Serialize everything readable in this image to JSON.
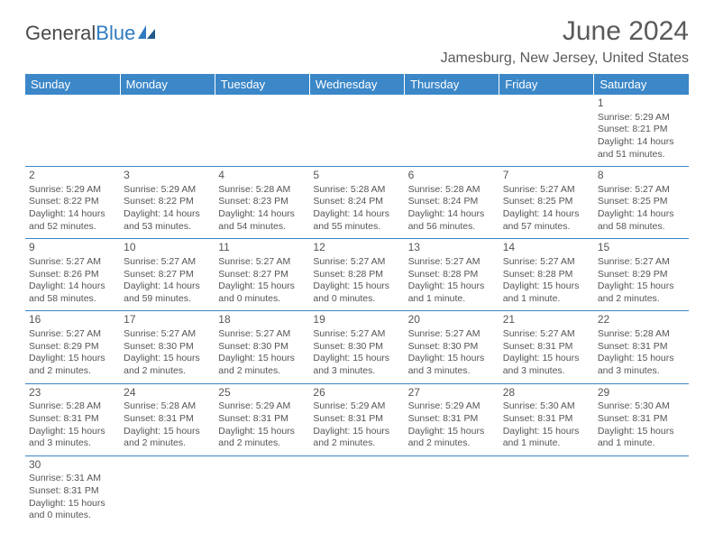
{
  "logo": {
    "text1": "General",
    "text2": "Blue"
  },
  "title": "June 2024",
  "location": "Jamesburg, New Jersey, United States",
  "colors": {
    "header_bg": "#3b87c8",
    "header_text": "#ffffff",
    "border": "#3b87c8",
    "text": "#555555",
    "logo_gray": "#4a4a4a",
    "logo_blue": "#2f7bbf"
  },
  "typography": {
    "title_fontsize": 30,
    "location_fontsize": 16,
    "weekday_fontsize": 13,
    "daynum_fontsize": 12,
    "cell_fontsize": 10.5
  },
  "weekdays": [
    "Sunday",
    "Monday",
    "Tuesday",
    "Wednesday",
    "Thursday",
    "Friday",
    "Saturday"
  ],
  "weeks": [
    [
      null,
      null,
      null,
      null,
      null,
      null,
      {
        "n": "1",
        "sr": "Sunrise: 5:29 AM",
        "ss": "Sunset: 8:21 PM",
        "dl": "Daylight: 14 hours and 51 minutes."
      }
    ],
    [
      {
        "n": "2",
        "sr": "Sunrise: 5:29 AM",
        "ss": "Sunset: 8:22 PM",
        "dl": "Daylight: 14 hours and 52 minutes."
      },
      {
        "n": "3",
        "sr": "Sunrise: 5:29 AM",
        "ss": "Sunset: 8:22 PM",
        "dl": "Daylight: 14 hours and 53 minutes."
      },
      {
        "n": "4",
        "sr": "Sunrise: 5:28 AM",
        "ss": "Sunset: 8:23 PM",
        "dl": "Daylight: 14 hours and 54 minutes."
      },
      {
        "n": "5",
        "sr": "Sunrise: 5:28 AM",
        "ss": "Sunset: 8:24 PM",
        "dl": "Daylight: 14 hours and 55 minutes."
      },
      {
        "n": "6",
        "sr": "Sunrise: 5:28 AM",
        "ss": "Sunset: 8:24 PM",
        "dl": "Daylight: 14 hours and 56 minutes."
      },
      {
        "n": "7",
        "sr": "Sunrise: 5:27 AM",
        "ss": "Sunset: 8:25 PM",
        "dl": "Daylight: 14 hours and 57 minutes."
      },
      {
        "n": "8",
        "sr": "Sunrise: 5:27 AM",
        "ss": "Sunset: 8:25 PM",
        "dl": "Daylight: 14 hours and 58 minutes."
      }
    ],
    [
      {
        "n": "9",
        "sr": "Sunrise: 5:27 AM",
        "ss": "Sunset: 8:26 PM",
        "dl": "Daylight: 14 hours and 58 minutes."
      },
      {
        "n": "10",
        "sr": "Sunrise: 5:27 AM",
        "ss": "Sunset: 8:27 PM",
        "dl": "Daylight: 14 hours and 59 minutes."
      },
      {
        "n": "11",
        "sr": "Sunrise: 5:27 AM",
        "ss": "Sunset: 8:27 PM",
        "dl": "Daylight: 15 hours and 0 minutes."
      },
      {
        "n": "12",
        "sr": "Sunrise: 5:27 AM",
        "ss": "Sunset: 8:28 PM",
        "dl": "Daylight: 15 hours and 0 minutes."
      },
      {
        "n": "13",
        "sr": "Sunrise: 5:27 AM",
        "ss": "Sunset: 8:28 PM",
        "dl": "Daylight: 15 hours and 1 minute."
      },
      {
        "n": "14",
        "sr": "Sunrise: 5:27 AM",
        "ss": "Sunset: 8:28 PM",
        "dl": "Daylight: 15 hours and 1 minute."
      },
      {
        "n": "15",
        "sr": "Sunrise: 5:27 AM",
        "ss": "Sunset: 8:29 PM",
        "dl": "Daylight: 15 hours and 2 minutes."
      }
    ],
    [
      {
        "n": "16",
        "sr": "Sunrise: 5:27 AM",
        "ss": "Sunset: 8:29 PM",
        "dl": "Daylight: 15 hours and 2 minutes."
      },
      {
        "n": "17",
        "sr": "Sunrise: 5:27 AM",
        "ss": "Sunset: 8:30 PM",
        "dl": "Daylight: 15 hours and 2 minutes."
      },
      {
        "n": "18",
        "sr": "Sunrise: 5:27 AM",
        "ss": "Sunset: 8:30 PM",
        "dl": "Daylight: 15 hours and 2 minutes."
      },
      {
        "n": "19",
        "sr": "Sunrise: 5:27 AM",
        "ss": "Sunset: 8:30 PM",
        "dl": "Daylight: 15 hours and 3 minutes."
      },
      {
        "n": "20",
        "sr": "Sunrise: 5:27 AM",
        "ss": "Sunset: 8:30 PM",
        "dl": "Daylight: 15 hours and 3 minutes."
      },
      {
        "n": "21",
        "sr": "Sunrise: 5:27 AM",
        "ss": "Sunset: 8:31 PM",
        "dl": "Daylight: 15 hours and 3 minutes."
      },
      {
        "n": "22",
        "sr": "Sunrise: 5:28 AM",
        "ss": "Sunset: 8:31 PM",
        "dl": "Daylight: 15 hours and 3 minutes."
      }
    ],
    [
      {
        "n": "23",
        "sr": "Sunrise: 5:28 AM",
        "ss": "Sunset: 8:31 PM",
        "dl": "Daylight: 15 hours and 3 minutes."
      },
      {
        "n": "24",
        "sr": "Sunrise: 5:28 AM",
        "ss": "Sunset: 8:31 PM",
        "dl": "Daylight: 15 hours and 2 minutes."
      },
      {
        "n": "25",
        "sr": "Sunrise: 5:29 AM",
        "ss": "Sunset: 8:31 PM",
        "dl": "Daylight: 15 hours and 2 minutes."
      },
      {
        "n": "26",
        "sr": "Sunrise: 5:29 AM",
        "ss": "Sunset: 8:31 PM",
        "dl": "Daylight: 15 hours and 2 minutes."
      },
      {
        "n": "27",
        "sr": "Sunrise: 5:29 AM",
        "ss": "Sunset: 8:31 PM",
        "dl": "Daylight: 15 hours and 2 minutes."
      },
      {
        "n": "28",
        "sr": "Sunrise: 5:30 AM",
        "ss": "Sunset: 8:31 PM",
        "dl": "Daylight: 15 hours and 1 minute."
      },
      {
        "n": "29",
        "sr": "Sunrise: 5:30 AM",
        "ss": "Sunset: 8:31 PM",
        "dl": "Daylight: 15 hours and 1 minute."
      }
    ],
    [
      {
        "n": "30",
        "sr": "Sunrise: 5:31 AM",
        "ss": "Sunset: 8:31 PM",
        "dl": "Daylight: 15 hours and 0 minutes."
      },
      null,
      null,
      null,
      null,
      null,
      null
    ]
  ]
}
